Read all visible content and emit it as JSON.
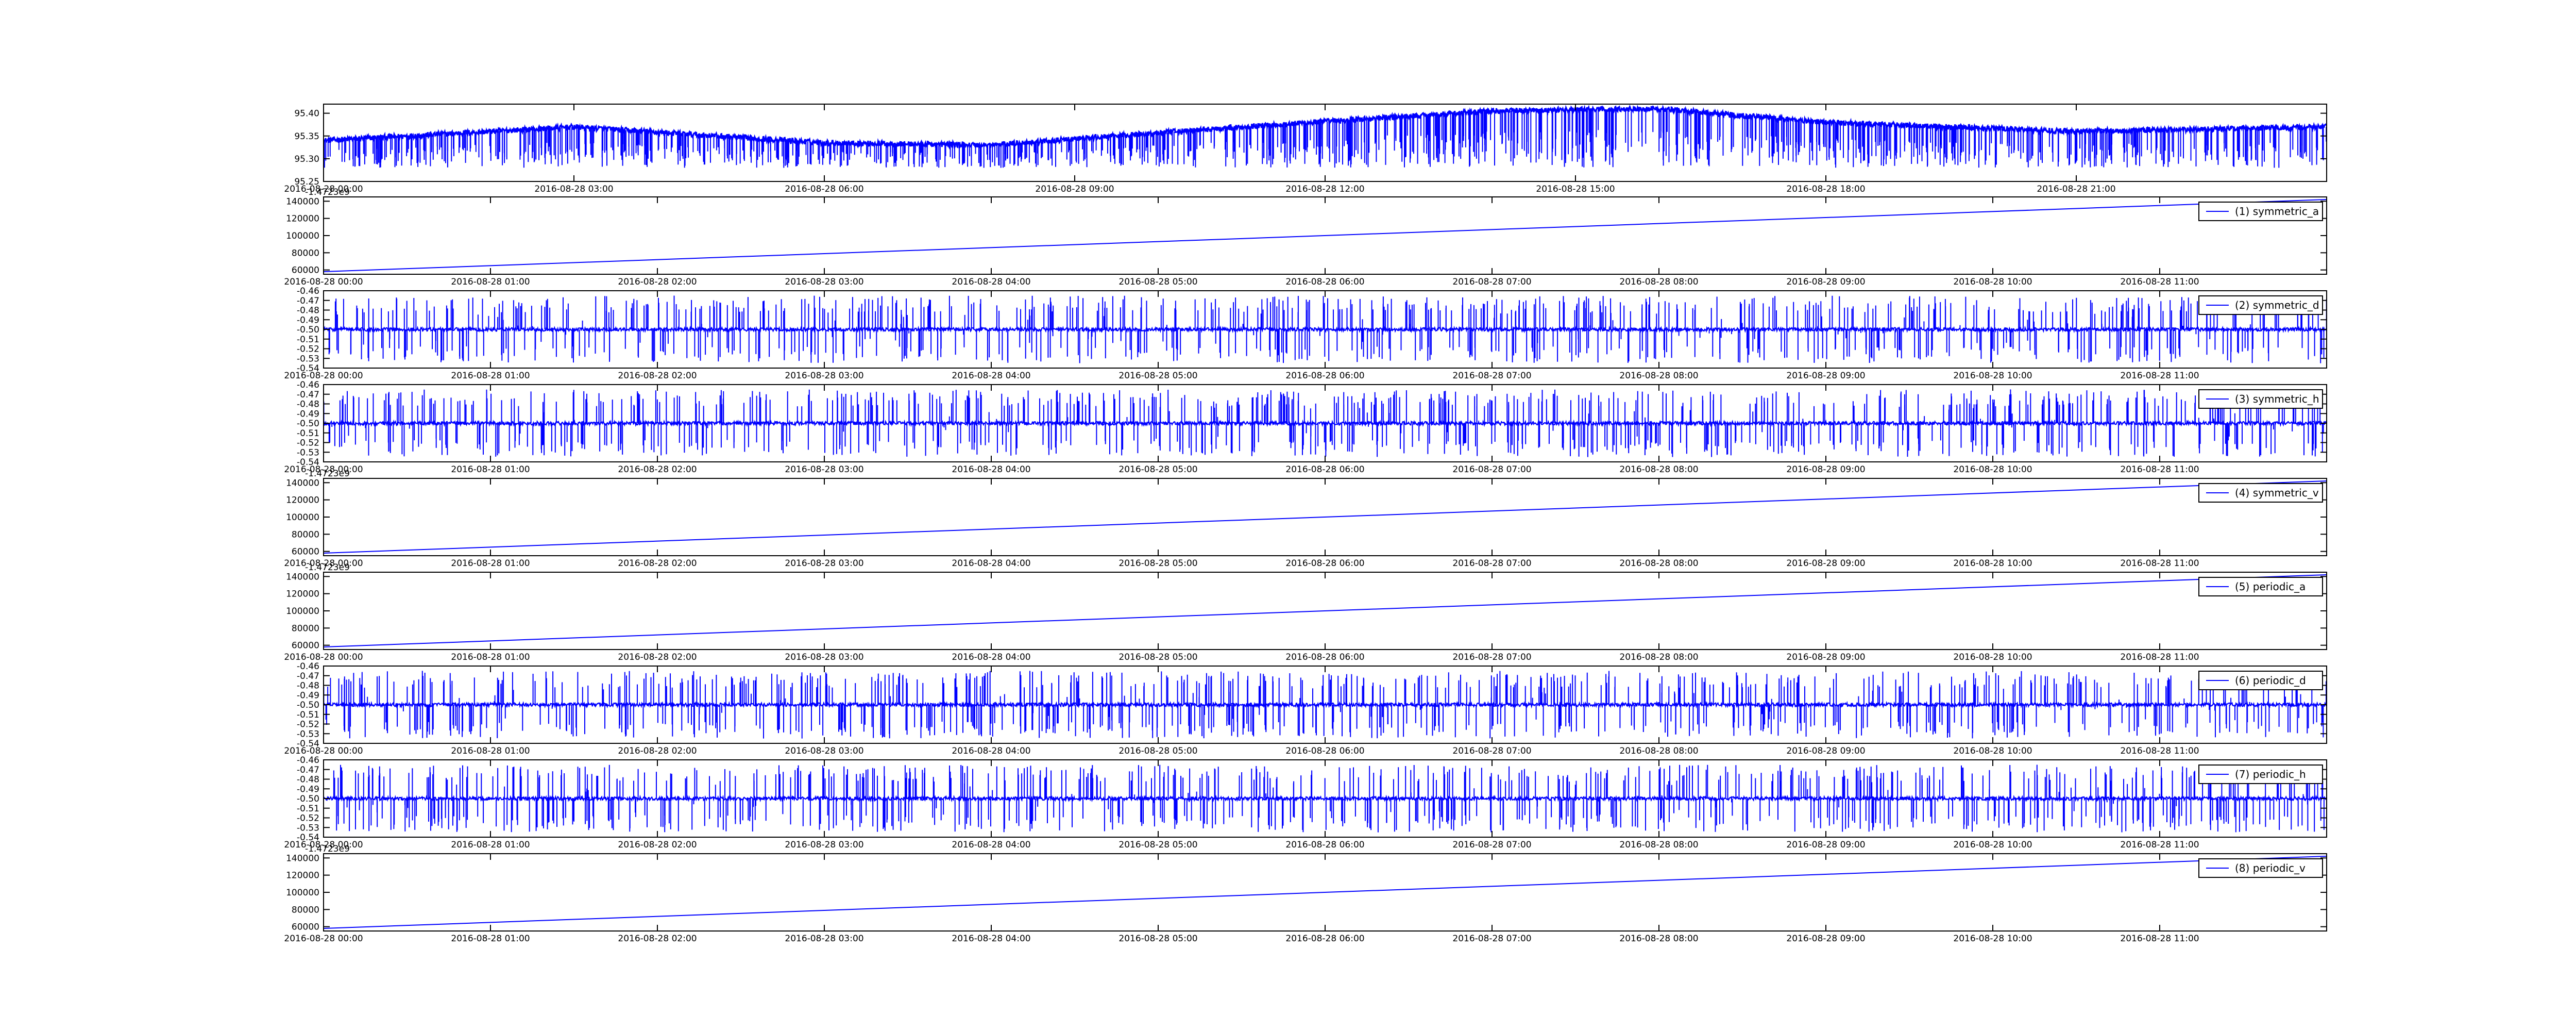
{
  "figure": {
    "background": "#ffffff",
    "line_color": "#0000ff",
    "axis_color": "#000000",
    "legend_border_color": "#000000"
  },
  "chart_data": [
    {
      "id": "top",
      "type": "line",
      "title": "",
      "legend": null,
      "offset_text": "",
      "x_range": [
        "2016-08-28 00:00",
        "2016-08-29 00:00"
      ],
      "x_ticks": [
        "2016-08-28 00:00",
        "2016-08-28 03:00",
        "2016-08-28 06:00",
        "2016-08-28 09:00",
        "2016-08-28 12:00",
        "2016-08-28 15:00",
        "2016-08-28 18:00",
        "2016-08-28 21:00"
      ],
      "ylim": [
        95.25,
        95.42
      ],
      "y_ticks": [
        "95.25",
        "95.30",
        "95.35",
        "95.40"
      ],
      "pattern": "baseline_with_downward_spikes",
      "baseline": {
        "x": [
          "2016-08-28 00:00",
          "2016-08-28 03:00",
          "2016-08-28 06:00",
          "2016-08-28 08:00",
          "2016-08-28 11:00",
          "2016-08-28 14:00",
          "2016-08-28 16:00",
          "2016-08-28 18:00",
          "2016-08-28 21:00",
          "2016-08-29 00:00"
        ],
        "y": [
          95.34,
          95.37,
          95.335,
          95.33,
          95.37,
          95.405,
          95.41,
          95.38,
          95.36,
          95.37
        ]
      },
      "spike_min": 95.28,
      "grid": false
    },
    {
      "id": "p1",
      "type": "line",
      "legend": "(1) symmetric_a",
      "legend_position": "top-right",
      "offset_text": "-1.4723e9",
      "x_range": [
        "2016-08-28 00:00",
        "2016-08-28 12:00"
      ],
      "x_ticks": [
        "2016-08-28 00:00",
        "2016-08-28 01:00",
        "2016-08-28 02:00",
        "2016-08-28 03:00",
        "2016-08-28 04:00",
        "2016-08-28 05:00",
        "2016-08-28 06:00",
        "2016-08-28 07:00",
        "2016-08-28 08:00",
        "2016-08-28 09:00",
        "2016-08-28 10:00",
        "2016-08-28 11:00"
      ],
      "ylim": [
        55000,
        145000
      ],
      "y_ticks": [
        "60000",
        "80000",
        "100000",
        "120000",
        "140000"
      ],
      "pattern": "linear",
      "x": [
        "2016-08-28 00:00",
        "2016-08-28 12:00"
      ],
      "y": [
        58000,
        142000
      ],
      "grid": false
    },
    {
      "id": "p2",
      "type": "line",
      "legend": "(2) symmetric_d",
      "legend_position": "top-right",
      "offset_text": "",
      "x_range": [
        "2016-08-28 00:00",
        "2016-08-28 12:00"
      ],
      "x_ticks": [
        "2016-08-28 00:00",
        "2016-08-28 01:00",
        "2016-08-28 02:00",
        "2016-08-28 03:00",
        "2016-08-28 04:00",
        "2016-08-28 05:00",
        "2016-08-28 06:00",
        "2016-08-28 07:00",
        "2016-08-28 08:00",
        "2016-08-28 09:00",
        "2016-08-28 10:00",
        "2016-08-28 11:00"
      ],
      "ylim": [
        -0.54,
        -0.46
      ],
      "y_ticks": [
        "-0.54",
        "-0.53",
        "-0.52",
        "-0.51",
        "-0.50",
        "-0.49",
        "-0.48",
        "-0.47",
        "-0.46"
      ],
      "pattern": "noise_with_spikes",
      "baseline_value": -0.5,
      "spike_range": [
        -0.535,
        -0.465
      ],
      "grid": false
    },
    {
      "id": "p3",
      "type": "line",
      "legend": "(3) symmetric_h",
      "legend_position": "top-right",
      "offset_text": "",
      "x_range": [
        "2016-08-28 00:00",
        "2016-08-28 12:00"
      ],
      "x_ticks": [
        "2016-08-28 00:00",
        "2016-08-28 01:00",
        "2016-08-28 02:00",
        "2016-08-28 03:00",
        "2016-08-28 04:00",
        "2016-08-28 05:00",
        "2016-08-28 06:00",
        "2016-08-28 07:00",
        "2016-08-28 08:00",
        "2016-08-28 09:00",
        "2016-08-28 10:00",
        "2016-08-28 11:00"
      ],
      "ylim": [
        -0.54,
        -0.46
      ],
      "y_ticks": [
        "-0.54",
        "-0.53",
        "-0.52",
        "-0.51",
        "-0.50",
        "-0.49",
        "-0.48",
        "-0.47",
        "-0.46"
      ],
      "pattern": "noise_with_spikes",
      "baseline_value": -0.5,
      "spike_range": [
        -0.535,
        -0.465
      ],
      "grid": false
    },
    {
      "id": "p4",
      "type": "line",
      "legend": "(4) symmetric_v",
      "legend_position": "top-right",
      "offset_text": "-1.4723e9",
      "x_range": [
        "2016-08-28 00:00",
        "2016-08-28 12:00"
      ],
      "x_ticks": [
        "2016-08-28 00:00",
        "2016-08-28 01:00",
        "2016-08-28 02:00",
        "2016-08-28 03:00",
        "2016-08-28 04:00",
        "2016-08-28 05:00",
        "2016-08-28 06:00",
        "2016-08-28 07:00",
        "2016-08-28 08:00",
        "2016-08-28 09:00",
        "2016-08-28 10:00",
        "2016-08-28 11:00"
      ],
      "ylim": [
        55000,
        145000
      ],
      "y_ticks": [
        "60000",
        "80000",
        "100000",
        "120000",
        "140000"
      ],
      "pattern": "linear",
      "x": [
        "2016-08-28 00:00",
        "2016-08-28 12:00"
      ],
      "y": [
        58000,
        142000
      ],
      "grid": false
    },
    {
      "id": "p5",
      "type": "line",
      "legend": "(5) periodic_a",
      "legend_position": "top-right",
      "offset_text": "-1.4723e9",
      "x_range": [
        "2016-08-28 00:00",
        "2016-08-28 12:00"
      ],
      "x_ticks": [
        "2016-08-28 00:00",
        "2016-08-28 01:00",
        "2016-08-28 02:00",
        "2016-08-28 03:00",
        "2016-08-28 04:00",
        "2016-08-28 05:00",
        "2016-08-28 06:00",
        "2016-08-28 07:00",
        "2016-08-28 08:00",
        "2016-08-28 09:00",
        "2016-08-28 10:00",
        "2016-08-28 11:00"
      ],
      "ylim": [
        55000,
        145000
      ],
      "y_ticks": [
        "60000",
        "80000",
        "100000",
        "120000",
        "140000"
      ],
      "pattern": "linear",
      "x": [
        "2016-08-28 00:00",
        "2016-08-28 12:00"
      ],
      "y": [
        58000,
        142000
      ],
      "grid": false
    },
    {
      "id": "p6",
      "type": "line",
      "legend": "(6) periodic_d",
      "legend_position": "top-right",
      "offset_text": "",
      "x_range": [
        "2016-08-28 00:00",
        "2016-08-28 12:00"
      ],
      "x_ticks": [
        "2016-08-28 00:00",
        "2016-08-28 01:00",
        "2016-08-28 02:00",
        "2016-08-28 03:00",
        "2016-08-28 04:00",
        "2016-08-28 05:00",
        "2016-08-28 06:00",
        "2016-08-28 07:00",
        "2016-08-28 08:00",
        "2016-08-28 09:00",
        "2016-08-28 10:00",
        "2016-08-28 11:00"
      ],
      "ylim": [
        -0.54,
        -0.46
      ],
      "y_ticks": [
        "-0.54",
        "-0.53",
        "-0.52",
        "-0.51",
        "-0.50",
        "-0.49",
        "-0.48",
        "-0.47",
        "-0.46"
      ],
      "pattern": "noise_with_spikes",
      "baseline_value": -0.5,
      "spike_range": [
        -0.535,
        -0.465
      ],
      "grid": false
    },
    {
      "id": "p7",
      "type": "line",
      "legend": "(7) periodic_h",
      "legend_position": "top-right",
      "offset_text": "",
      "x_range": [
        "2016-08-28 00:00",
        "2016-08-28 12:00"
      ],
      "x_ticks": [
        "2016-08-28 00:00",
        "2016-08-28 01:00",
        "2016-08-28 02:00",
        "2016-08-28 03:00",
        "2016-08-28 04:00",
        "2016-08-28 05:00",
        "2016-08-28 06:00",
        "2016-08-28 07:00",
        "2016-08-28 08:00",
        "2016-08-28 09:00",
        "2016-08-28 10:00",
        "2016-08-28 11:00"
      ],
      "ylim": [
        -0.54,
        -0.46
      ],
      "y_ticks": [
        "-0.54",
        "-0.53",
        "-0.52",
        "-0.51",
        "-0.50",
        "-0.49",
        "-0.48",
        "-0.47",
        "-0.46"
      ],
      "pattern": "noise_with_spikes",
      "baseline_value": -0.5,
      "spike_range": [
        -0.535,
        -0.465
      ],
      "grid": false
    },
    {
      "id": "p8",
      "type": "line",
      "legend": "(8) periodic_v",
      "legend_position": "top-right",
      "offset_text": "-1.4723e9",
      "x_range": [
        "2016-08-28 00:00",
        "2016-08-28 12:00"
      ],
      "x_ticks": [
        "2016-08-28 00:00",
        "2016-08-28 01:00",
        "2016-08-28 02:00",
        "2016-08-28 03:00",
        "2016-08-28 04:00",
        "2016-08-28 05:00",
        "2016-08-28 06:00",
        "2016-08-28 07:00",
        "2016-08-28 08:00",
        "2016-08-28 09:00",
        "2016-08-28 10:00",
        "2016-08-28 11:00"
      ],
      "ylim": [
        55000,
        145000
      ],
      "y_ticks": [
        "60000",
        "80000",
        "100000",
        "120000",
        "140000"
      ],
      "pattern": "linear",
      "x": [
        "2016-08-28 00:00",
        "2016-08-28 12:00"
      ],
      "y": [
        58000,
        142000
      ],
      "grid": false
    }
  ]
}
